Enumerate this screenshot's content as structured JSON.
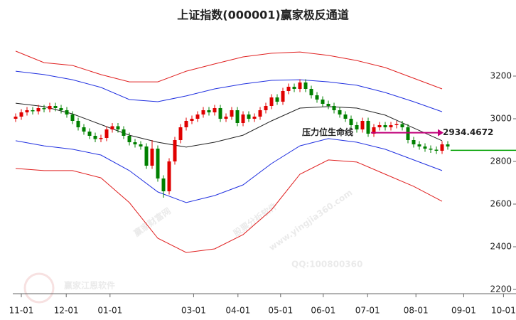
{
  "chart_data": {
    "type": "candlestick",
    "title": "上证指数(000001)赢家极反通道",
    "xlim": [
      0,
      88.5
    ],
    "xticks": [
      {
        "value": 1.5,
        "label": "11-01"
      },
      {
        "value": 9.4,
        "label": "12-01"
      },
      {
        "value": 17.1,
        "label": "01-01"
      },
      {
        "value": 31.8,
        "label": "03-01"
      },
      {
        "value": 39.6,
        "label": "04-01"
      },
      {
        "value": 47.1,
        "label": "05-01"
      },
      {
        "value": 54.6,
        "label": "06-01"
      },
      {
        "value": 62.4,
        "label": "07-01"
      },
      {
        "value": 70.9,
        "label": "08-01"
      },
      {
        "value": 79.3,
        "label": "09-01"
      },
      {
        "value": 86.3,
        "label": "10-01"
      }
    ],
    "ylim": [
      2180,
      3420
    ],
    "yticks": [
      2200,
      2400,
      2600,
      2800,
      3000,
      3200
    ],
    "up_color": "#e00000",
    "down_color": "#008000",
    "open": [
      3000,
      3010,
      3030,
      3040,
      3035,
      3050,
      3045,
      3060,
      3050,
      3040,
      3020,
      2990,
      2960,
      2940,
      2920,
      2905,
      2910,
      2950,
      2965,
      2950,
      2920,
      2890,
      2880,
      2870,
      2780,
      2860,
      2720,
      2660,
      2800,
      2900,
      2960,
      2990,
      3000,
      3020,
      3040,
      3030,
      3050,
      3000,
      3010,
      3040,
      2980,
      3020,
      3000,
      3010,
      3040,
      3060,
      3100,
      3080,
      3130,
      3150,
      3140,
      3170,
      3140,
      3110,
      3090,
      3070,
      3060,
      3040,
      3020,
      3000,
      2970,
      2950,
      2990,
      2930,
      2960,
      2970,
      2960,
      2970,
      2975,
      2960,
      2900,
      2880,
      2870,
      2860,
      2855,
      2850,
      2880
    ],
    "high": [
      3025,
      3045,
      3055,
      3055,
      3065,
      3065,
      3075,
      3075,
      3065,
      3055,
      3035,
      3005,
      2975,
      2955,
      2935,
      2925,
      2965,
      2980,
      2980,
      2965,
      2935,
      2905,
      2895,
      2885,
      2900,
      2875,
      2735,
      2815,
      2915,
      2975,
      3005,
      3015,
      3035,
      3055,
      3055,
      3065,
      3065,
      3025,
      3055,
      3055,
      3035,
      3035,
      3025,
      3055,
      3075,
      3115,
      3115,
      3145,
      3165,
      3165,
      3185,
      3185,
      3155,
      3125,
      3105,
      3085,
      3075,
      3055,
      3035,
      3015,
      2985,
      3005,
      3005,
      2975,
      2985,
      2985,
      2985,
      2990,
      2990,
      2975,
      2915,
      2895,
      2885,
      2875,
      2870,
      2895,
      2895
    ],
    "low": [
      2985,
      2995,
      3015,
      3020,
      3020,
      3030,
      3030,
      3035,
      3025,
      3005,
      2975,
      2945,
      2925,
      2905,
      2890,
      2890,
      2895,
      2935,
      2935,
      2905,
      2875,
      2865,
      2855,
      2765,
      2765,
      2705,
      2630,
      2645,
      2785,
      2885,
      2945,
      2975,
      2985,
      3005,
      3015,
      3015,
      2985,
      2985,
      2995,
      2965,
      2965,
      2985,
      2985,
      2995,
      3025,
      3045,
      3065,
      3065,
      3115,
      3125,
      3125,
      3125,
      3095,
      3075,
      3055,
      3045,
      3025,
      3005,
      2985,
      2955,
      2935,
      2935,
      2915,
      2915,
      2945,
      2945,
      2945,
      2955,
      2945,
      2885,
      2865,
      2855,
      2845,
      2840,
      2835,
      2835,
      2855
    ],
    "close": [
      3010,
      3030,
      3040,
      3035,
      3050,
      3045,
      3060,
      3050,
      3040,
      3020,
      2990,
      2960,
      2940,
      2920,
      2905,
      2910,
      2950,
      2965,
      2950,
      2920,
      2890,
      2880,
      2870,
      2780,
      2860,
      2720,
      2660,
      2800,
      2900,
      2960,
      2990,
      3000,
      3020,
      3040,
      3030,
      3050,
      3000,
      3010,
      3040,
      2980,
      3020,
      3000,
      3010,
      3040,
      3060,
      3100,
      3080,
      3130,
      3150,
      3140,
      3170,
      3140,
      3110,
      3090,
      3070,
      3060,
      3040,
      3020,
      3000,
      2970,
      2950,
      2990,
      2930,
      2960,
      2970,
      2960,
      2970,
      2975,
      2960,
      2900,
      2880,
      2870,
      2860,
      2855,
      2850,
      2880,
      2870
    ],
    "bands_x": [
      0,
      5,
      10,
      15,
      20,
      25,
      30,
      35,
      40,
      45,
      50,
      55,
      60,
      65,
      70,
      75
    ],
    "bands": [
      {
        "color": "#e02020",
        "values": [
          3317,
          3263,
          3250,
          3207,
          3173,
          3173,
          3223,
          3257,
          3290,
          3307,
          3313,
          3297,
          3273,
          3240,
          3190,
          3140
        ]
      },
      {
        "color": "#2030e0",
        "values": [
          3223,
          3207,
          3183,
          3147,
          3090,
          3080,
          3107,
          3140,
          3163,
          3180,
          3183,
          3173,
          3157,
          3123,
          3080,
          3033
        ]
      },
      {
        "color": "#222222",
        "values": [
          3073,
          3057,
          3023,
          2973,
          2923,
          2890,
          2867,
          2890,
          2923,
          2990,
          3050,
          3057,
          3050,
          3017,
          2957,
          2897
        ]
      },
      {
        "color": "#2030e0",
        "values": [
          2897,
          2873,
          2857,
          2830,
          2757,
          2657,
          2607,
          2640,
          2690,
          2790,
          2873,
          2907,
          2890,
          2857,
          2807,
          2757
        ]
      },
      {
        "color": "#e02020",
        "values": [
          2767,
          2757,
          2757,
          2723,
          2607,
          2440,
          2373,
          2390,
          2457,
          2573,
          2740,
          2807,
          2797,
          2740,
          2683,
          2613
        ]
      }
    ],
    "pressure_text": "压力位生命线",
    "pressure_value": 2934.4672,
    "pressure_color": "#c0007a",
    "last_line": {
      "value": 2852,
      "color": "#00a000"
    },
    "watermarks": [
      "赢家财富网",
      "股票分析软件",
      "www.yingjia360.com",
      "QQ:100800360",
      "赢家江恩软件"
    ]
  }
}
